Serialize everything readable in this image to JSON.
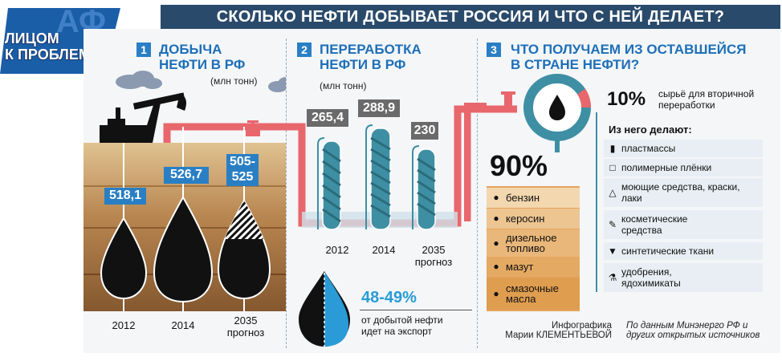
{
  "title": "СКОЛЬКО НЕФТИ ДОБЫВАЕТ РОССИЯ И ЧТО С НЕЙ ДЕЛАЕТ?",
  "brand": {
    "line1": "ЛИЦОМ",
    "line2": "К ПРОБЛЕМЕ",
    "badge": "АФ"
  },
  "section1": {
    "num": "1",
    "title_line1": "ДОБЫЧА",
    "title_line2": "НЕФТИ В РФ",
    "units": "(млн тонн)",
    "values": [
      "518,1",
      "526,7",
      "505-\n525"
    ],
    "value3_line1": "505-",
    "value3_line2": "525",
    "years": [
      "2012",
      "2014",
      "2035"
    ],
    "forecast": "прогноз"
  },
  "section2": {
    "num": "2",
    "title_line1": "ПЕРЕРАБОТКА",
    "title_line2": "НЕФТИ В РФ",
    "units": "(млн тонн)",
    "values": [
      "265,4",
      "288,9",
      "230"
    ],
    "years": [
      "2012",
      "2014",
      "2035"
    ],
    "forecast": "прогноз",
    "export_pct": "48-49%",
    "export_line1": "от добытой нефти",
    "export_line2": "идет на экспорт"
  },
  "section3": {
    "num": "3",
    "title_line1": "ЧТО ПОЛУЧАЕМ ИЗ ОСТАВШЕЙСЯ",
    "title_line2": "В СТРАНЕ НЕФТИ?",
    "pct_raw": "10%",
    "raw_line1": "сырьё для вторичной",
    "raw_line2": "переработки",
    "made_from": "Из него делают:",
    "pct_main": "90%",
    "products": [
      "бензин",
      "керосин",
      "дизельное топливо",
      "мазут",
      "смазочные масла"
    ],
    "uses": [
      "пластмассы",
      "полимерные плёнки",
      "моющие средства, краски, лаки",
      "косметические средства",
      "синтетические ткани",
      "удобрения, ядохимикаты"
    ]
  },
  "footer": {
    "author_line1": "Инфографика",
    "author_line2": "Марии КЛЕМЕНТЬЕВОЙ",
    "source_line1": "По данным Минэнерго РФ и",
    "source_line2": "других открытых источников"
  },
  "colors": {
    "title_bg": "#2a4a6b",
    "accent_blue": "#2a7fc4",
    "pipe_red": "#e8676d",
    "teal": "#3e8fa3",
    "ground_top": "#d9b98a",
    "ground_bottom": "#7a4a22"
  }
}
